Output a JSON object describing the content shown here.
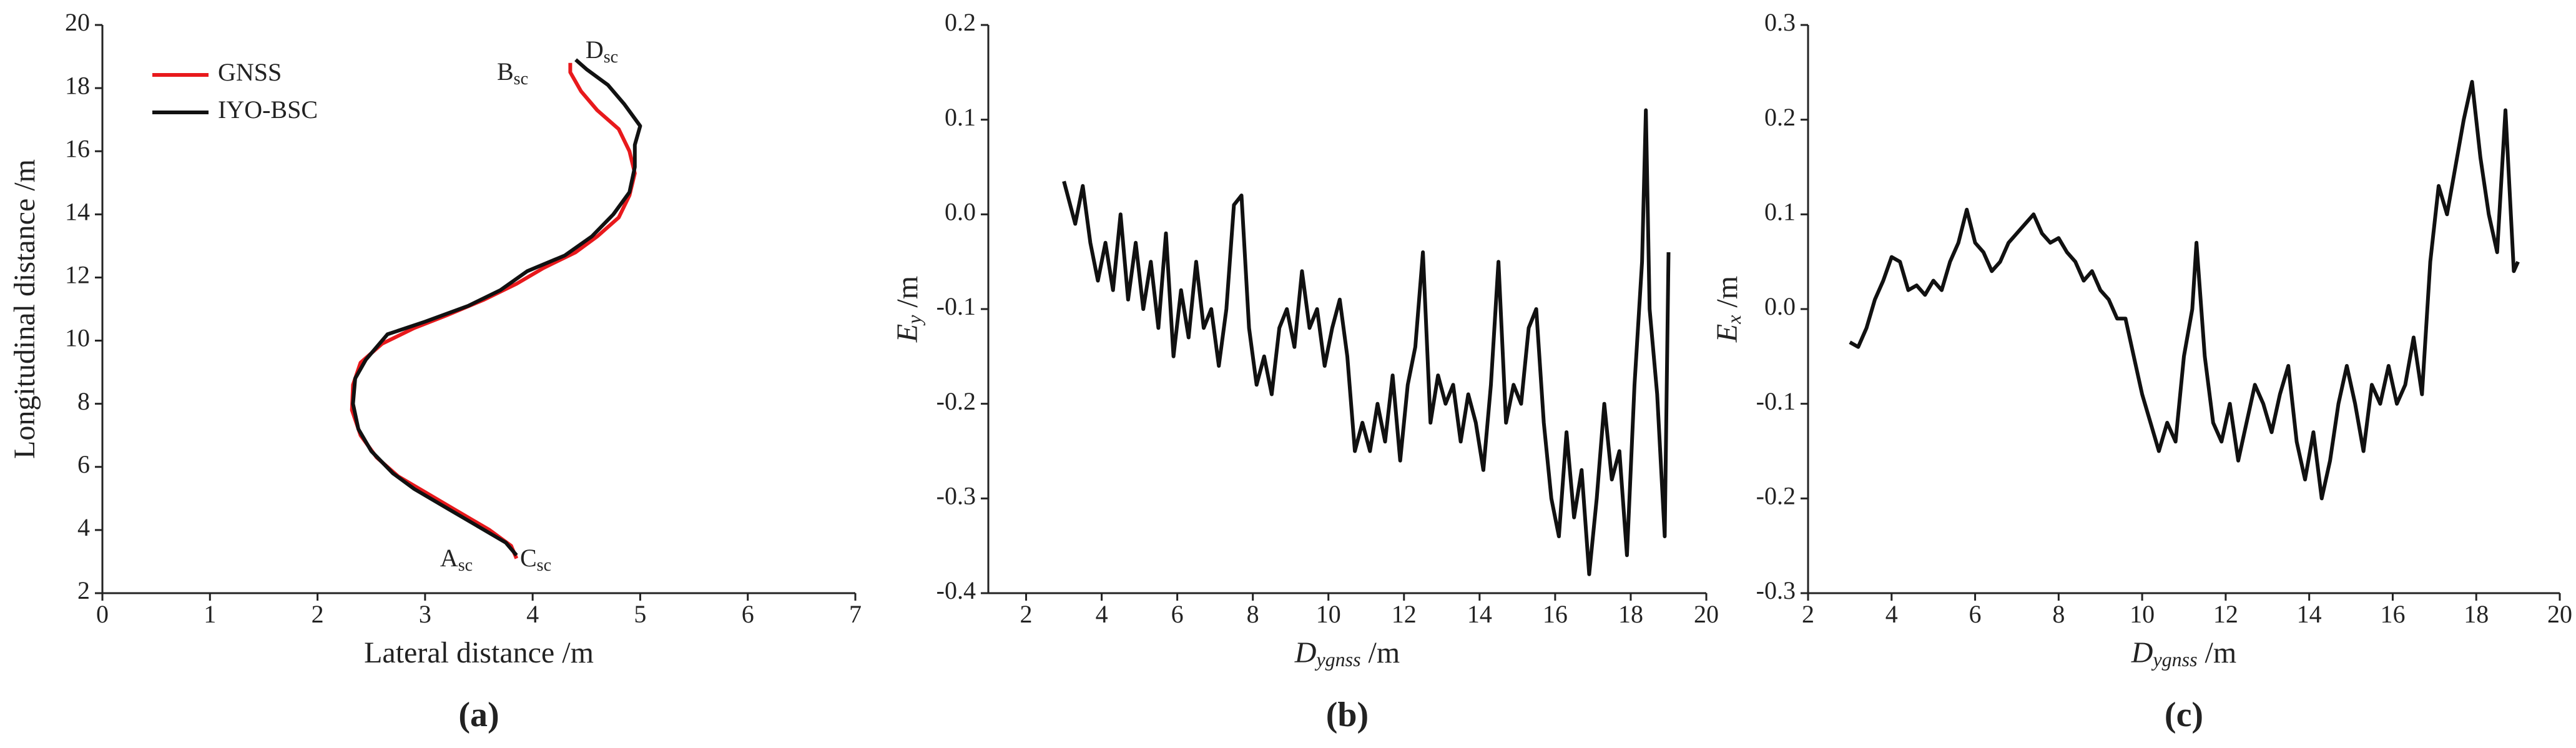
{
  "chart_data": [
    {
      "type": "line",
      "panel_label": "(a)",
      "xlabel": "Lateral distance /m",
      "ylabel": "Longitudinal distance /m",
      "xlim": [
        0,
        7
      ],
      "xticks": [
        0,
        1,
        2,
        3,
        4,
        5,
        6,
        7
      ],
      "ylim": [
        2,
        20
      ],
      "yticks": [
        2,
        4,
        6,
        8,
        10,
        12,
        14,
        16,
        18,
        20
      ],
      "legend": "upper left",
      "annotations": [
        {
          "text": "A",
          "subscript": "sc"
        },
        {
          "text": "B",
          "subscript": "sc"
        },
        {
          "text": "C",
          "subscript": "sc"
        },
        {
          "text": "D",
          "subscript": "sc"
        }
      ],
      "series": [
        {
          "name": "GNSS",
          "color": "#e8191c",
          "x": [
            3.85,
            3.8,
            3.6,
            3.3,
            3.0,
            2.75,
            2.55,
            2.4,
            2.32,
            2.33,
            2.4,
            2.6,
            2.9,
            3.2,
            3.55,
            3.85,
            4.1,
            4.4,
            4.6,
            4.8,
            4.9,
            4.95,
            4.9,
            4.8,
            4.6,
            4.45,
            4.35,
            4.35
          ],
          "values": [
            3.1,
            3.5,
            4.0,
            4.6,
            5.2,
            5.7,
            6.3,
            7.0,
            7.8,
            8.6,
            9.3,
            9.9,
            10.4,
            10.8,
            11.3,
            11.8,
            12.3,
            12.8,
            13.3,
            13.9,
            14.6,
            15.3,
            16.0,
            16.7,
            17.3,
            17.9,
            18.5,
            18.8
          ]
        },
        {
          "name": "IYO-BSC",
          "color": "#111111",
          "x": [
            3.85,
            3.75,
            3.5,
            3.2,
            2.9,
            2.7,
            2.5,
            2.38,
            2.33,
            2.35,
            2.45,
            2.65,
            3.0,
            3.4,
            3.7,
            3.95,
            4.3,
            4.55,
            4.75,
            4.9,
            4.95,
            4.95,
            5.0,
            4.85,
            4.7,
            4.5,
            4.4
          ],
          "values": [
            3.2,
            3.6,
            4.1,
            4.7,
            5.3,
            5.8,
            6.5,
            7.2,
            8.0,
            8.8,
            9.4,
            10.2,
            10.6,
            11.1,
            11.6,
            12.2,
            12.7,
            13.3,
            14.0,
            14.7,
            15.5,
            16.2,
            16.8,
            17.5,
            18.1,
            18.6,
            18.9
          ]
        }
      ]
    },
    {
      "type": "line",
      "panel_label": "(b)",
      "xlabel": {
        "symbol": "D",
        "subscript": "ygnss",
        "unit": "/m"
      },
      "ylabel": {
        "symbol": "E",
        "subscript": "y",
        "unit": "/m"
      },
      "xlim": [
        1,
        20
      ],
      "xticks": [
        2,
        4,
        6,
        8,
        10,
        12,
        14,
        16,
        18,
        20
      ],
      "ylim": [
        -0.4,
        0.2
      ],
      "yticks": [
        -0.4,
        -0.3,
        -0.2,
        -0.1,
        {
          "value": 0,
          "label": "0.0"
        },
        0.1,
        0.2
      ],
      "color": "#111111",
      "x": [
        3.0,
        3.3,
        3.5,
        3.7,
        3.9,
        4.1,
        4.3,
        4.5,
        4.7,
        4.9,
        5.1,
        5.3,
        5.5,
        5.7,
        5.9,
        6.1,
        6.3,
        6.5,
        6.7,
        6.9,
        7.1,
        7.3,
        7.5,
        7.7,
        7.9,
        8.1,
        8.3,
        8.5,
        8.7,
        8.9,
        9.1,
        9.3,
        9.5,
        9.7,
        9.9,
        10.1,
        10.3,
        10.5,
        10.7,
        10.9,
        11.1,
        11.3,
        11.5,
        11.7,
        11.9,
        12.1,
        12.3,
        12.5,
        12.7,
        12.9,
        13.1,
        13.3,
        13.5,
        13.7,
        13.9,
        14.1,
        14.3,
        14.5,
        14.7,
        14.9,
        15.1,
        15.3,
        15.5,
        15.7,
        15.9,
        16.1,
        16.3,
        16.5,
        16.7,
        16.9,
        17.1,
        17.3,
        17.5,
        17.7,
        17.9,
        18.1,
        18.3,
        18.4,
        18.5,
        18.7,
        18.9,
        19.0
      ],
      "values": [
        0.035,
        -0.01,
        0.03,
        -0.03,
        -0.07,
        -0.03,
        -0.08,
        0.0,
        -0.09,
        -0.03,
        -0.1,
        -0.05,
        -0.12,
        -0.02,
        -0.15,
        -0.08,
        -0.13,
        -0.05,
        -0.12,
        -0.1,
        -0.16,
        -0.1,
        0.01,
        0.02,
        -0.12,
        -0.18,
        -0.15,
        -0.19,
        -0.12,
        -0.1,
        -0.14,
        -0.06,
        -0.12,
        -0.1,
        -0.16,
        -0.12,
        -0.09,
        -0.15,
        -0.25,
        -0.22,
        -0.25,
        -0.2,
        -0.24,
        -0.17,
        -0.26,
        -0.18,
        -0.14,
        -0.04,
        -0.22,
        -0.17,
        -0.2,
        -0.18,
        -0.24,
        -0.19,
        -0.22,
        -0.27,
        -0.18,
        -0.05,
        -0.22,
        -0.18,
        -0.2,
        -0.12,
        -0.1,
        -0.22,
        -0.3,
        -0.34,
        -0.23,
        -0.32,
        -0.27,
        -0.38,
        -0.3,
        -0.2,
        -0.28,
        -0.25,
        -0.36,
        -0.18,
        -0.05,
        0.11,
        -0.1,
        -0.19,
        -0.34,
        -0.04
      ]
    },
    {
      "type": "line",
      "panel_label": "(c)",
      "xlabel": {
        "symbol": "D",
        "subscript": "ygnss",
        "unit": "/m"
      },
      "ylabel": {
        "symbol": "E",
        "subscript": "x",
        "unit": "/m"
      },
      "xlim": [
        2,
        20
      ],
      "xticks": [
        2,
        4,
        6,
        8,
        10,
        12,
        14,
        16,
        18,
        20
      ],
      "ylim": [
        -0.3,
        0.3
      ],
      "yticks": [
        -0.3,
        -0.2,
        -0.1,
        {
          "value": 0,
          "label": "0.0"
        },
        0.1,
        0.2,
        0.3
      ],
      "color": "#111111",
      "x": [
        3.0,
        3.2,
        3.4,
        3.6,
        3.8,
        4.0,
        4.2,
        4.4,
        4.6,
        4.8,
        5.0,
        5.2,
        5.4,
        5.6,
        5.8,
        6.0,
        6.2,
        6.4,
        6.6,
        6.8,
        7.0,
        7.2,
        7.4,
        7.6,
        7.8,
        8.0,
        8.2,
        8.4,
        8.6,
        8.8,
        9.0,
        9.2,
        9.4,
        9.6,
        9.8,
        10.0,
        10.2,
        10.4,
        10.6,
        10.8,
        11.0,
        11.2,
        11.3,
        11.5,
        11.7,
        11.9,
        12.1,
        12.3,
        12.5,
        12.7,
        12.9,
        13.1,
        13.3,
        13.5,
        13.7,
        13.9,
        14.1,
        14.3,
        14.5,
        14.7,
        14.9,
        15.1,
        15.3,
        15.5,
        15.7,
        15.9,
        16.1,
        16.3,
        16.5,
        16.7,
        16.9,
        17.1,
        17.3,
        17.5,
        17.7,
        17.9,
        18.1,
        18.3,
        18.5,
        18.7,
        18.9,
        19.0
      ],
      "values": [
        -0.035,
        -0.04,
        -0.02,
        0.01,
        0.03,
        0.055,
        0.05,
        0.02,
        0.025,
        0.015,
        0.03,
        0.02,
        0.05,
        0.07,
        0.105,
        0.07,
        0.06,
        0.04,
        0.05,
        0.07,
        0.08,
        0.09,
        0.1,
        0.08,
        0.07,
        0.075,
        0.06,
        0.05,
        0.03,
        0.04,
        0.02,
        0.01,
        -0.01,
        -0.01,
        -0.05,
        -0.09,
        -0.12,
        -0.15,
        -0.12,
        -0.14,
        -0.05,
        0.0,
        0.07,
        -0.05,
        -0.12,
        -0.14,
        -0.1,
        -0.16,
        -0.12,
        -0.08,
        -0.1,
        -0.13,
        -0.09,
        -0.06,
        -0.14,
        -0.18,
        -0.13,
        -0.2,
        -0.16,
        -0.1,
        -0.06,
        -0.1,
        -0.15,
        -0.08,
        -0.1,
        -0.06,
        -0.1,
        -0.08,
        -0.03,
        -0.09,
        0.05,
        0.13,
        0.1,
        0.15,
        0.2,
        0.24,
        0.16,
        0.1,
        0.06,
        0.21,
        0.04,
        0.05
      ]
    }
  ]
}
